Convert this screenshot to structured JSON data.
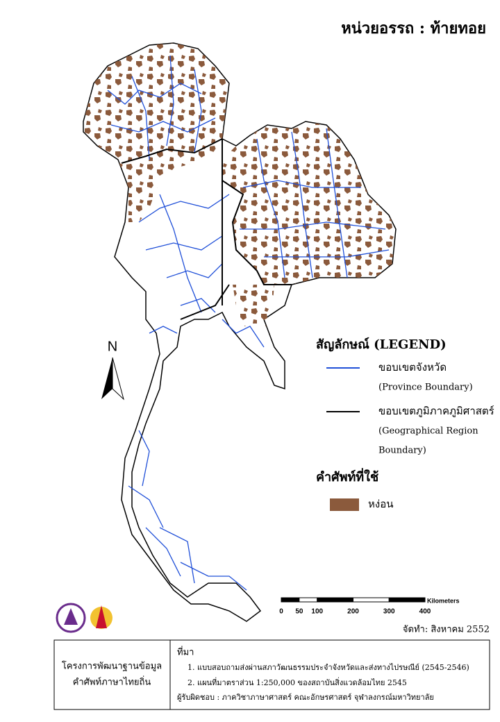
{
  "header": {
    "title": "หน่วยอรรถ : ท้ายทอย"
  },
  "map": {
    "north": "N"
  },
  "legend": {
    "title": "สัญลักษณ์ (LEGEND)",
    "items": [
      {
        "label": "ขอบเขตจังหวัด",
        "sublabel": [
          "(Province Boundary)"
        ],
        "color": "#1f4fd8"
      },
      {
        "label": "ขอบเขตภูมิภาคภูมิศาสตร์",
        "sublabel": [
          "(Geographical Region",
          "Boundary)"
        ],
        "color": "#000000"
      }
    ]
  },
  "terms": {
    "title": "คำศัพท์ที่ใช้",
    "items": [
      {
        "label": "หง่อน",
        "color": "#8b5a3c"
      }
    ]
  },
  "scale_bar": {
    "unit": "Kilometers",
    "ticks": [
      0,
      50,
      100,
      200,
      300,
      400
    ]
  },
  "date": "จัดทำ: สิงหาคม 2552",
  "footer": {
    "project": [
      "โครงการพัฒนาฐานข้อมูล",
      "คำศัพท์ภาษาไทยถิ่น"
    ],
    "source_title": "ที่มา",
    "sources": [
      "1. แบบสอบถามส่งผ่านสภาวัฒนธรรมประจำจังหวัดและส่งทางไปรษณีย์ (2545-2546)",
      "2. แผนที่มาตราส่วน 1:250,000 ของสถาบันสิ่งแวดล้อมไทย 2545"
    ],
    "responsible": "ผู้รับผิดชอบ : ภาควิชาภาษาศาสตร์ คณะอักษรศาสตร์ จุฬาลงกรณ์มหาวิทยาลัย"
  }
}
